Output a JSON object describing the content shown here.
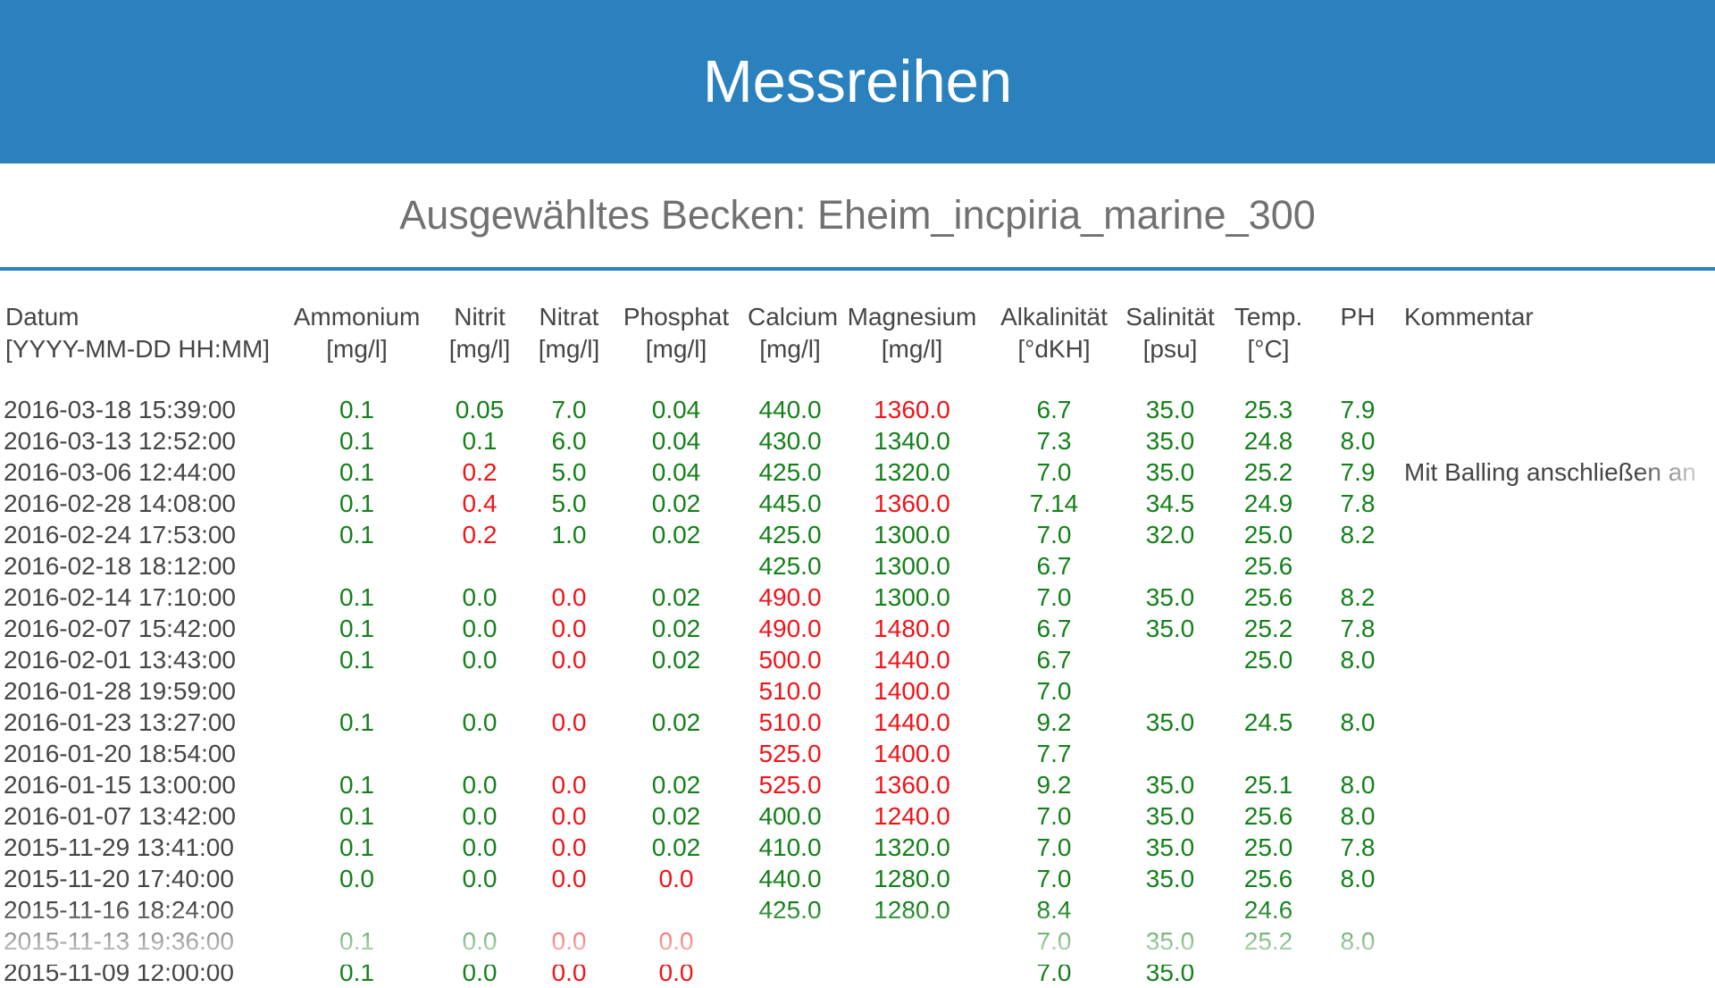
{
  "header": {
    "title": "Messreihen"
  },
  "subheader": {
    "selected_tank_label": "Ausgewähltes Becken: Eheim_incpiria_marine_300"
  },
  "colors": {
    "banner_blue": "#2a81be",
    "value_ok_green": "#14801a",
    "value_alert_red": "#f01419",
    "text_dark": "#454545",
    "subtitle_gray": "#717171"
  },
  "table": {
    "columns": [
      {
        "key": "datum",
        "label": "Datum",
        "unit": "[YYYY-MM-DD HH:MM]"
      },
      {
        "key": "ammonium",
        "label": "Ammonium",
        "unit": "[mg/l]"
      },
      {
        "key": "nitrit",
        "label": "Nitrit",
        "unit": "[mg/l]"
      },
      {
        "key": "nitrat",
        "label": "Nitrat",
        "unit": "[mg/l]"
      },
      {
        "key": "phosphat",
        "label": "Phosphat",
        "unit": "[mg/l]"
      },
      {
        "key": "calcium",
        "label": "Calcium",
        "unit": "[mg/l]"
      },
      {
        "key": "magnesium",
        "label": "Magnesium",
        "unit": "[mg/l]"
      },
      {
        "key": "alkalinitaet",
        "label": "Alkalinität",
        "unit": "[°dKH]"
      },
      {
        "key": "salinitaet",
        "label": "Salinität",
        "unit": "[psu]"
      },
      {
        "key": "temp",
        "label": "Temp.",
        "unit": "[°C]"
      },
      {
        "key": "ph",
        "label": "PH",
        "unit": ""
      },
      {
        "key": "kommentar",
        "label": "Kommentar",
        "unit": ""
      }
    ],
    "rows": [
      {
        "date": "2016-03-18 15:39:00",
        "values": [
          [
            "0.1",
            "g"
          ],
          [
            "0.05",
            "g"
          ],
          [
            "7.0",
            "g"
          ],
          [
            "0.04",
            "g"
          ],
          [
            "440.0",
            "g"
          ],
          [
            "1360.0",
            "r"
          ],
          [
            "6.7",
            "g"
          ],
          [
            "35.0",
            "g"
          ],
          [
            "25.3",
            "g"
          ],
          [
            "7.9",
            "g"
          ]
        ],
        "comment": ""
      },
      {
        "date": "2016-03-13 12:52:00",
        "values": [
          [
            "0.1",
            "g"
          ],
          [
            "0.1",
            "g"
          ],
          [
            "6.0",
            "g"
          ],
          [
            "0.04",
            "g"
          ],
          [
            "430.0",
            "g"
          ],
          [
            "1340.0",
            "g"
          ],
          [
            "7.3",
            "g"
          ],
          [
            "35.0",
            "g"
          ],
          [
            "24.8",
            "g"
          ],
          [
            "8.0",
            "g"
          ]
        ],
        "comment": ""
      },
      {
        "date": "2016-03-06 12:44:00",
        "values": [
          [
            "0.1",
            "g"
          ],
          [
            "0.2",
            "r"
          ],
          [
            "5.0",
            "g"
          ],
          [
            "0.04",
            "g"
          ],
          [
            "425.0",
            "g"
          ],
          [
            "1320.0",
            "g"
          ],
          [
            "7.0",
            "g"
          ],
          [
            "35.0",
            "g"
          ],
          [
            "25.2",
            "g"
          ],
          [
            "7.9",
            "g"
          ]
        ],
        "comment": "Mit Balling anschließen an"
      },
      {
        "date": "2016-02-28 14:08:00",
        "values": [
          [
            "0.1",
            "g"
          ],
          [
            "0.4",
            "r"
          ],
          [
            "5.0",
            "g"
          ],
          [
            "0.02",
            "g"
          ],
          [
            "445.0",
            "g"
          ],
          [
            "1360.0",
            "r"
          ],
          [
            "7.14",
            "g"
          ],
          [
            "34.5",
            "g"
          ],
          [
            "24.9",
            "g"
          ],
          [
            "7.8",
            "g"
          ]
        ],
        "comment": ""
      },
      {
        "date": "2016-02-24 17:53:00",
        "values": [
          [
            "0.1",
            "g"
          ],
          [
            "0.2",
            "r"
          ],
          [
            "1.0",
            "g"
          ],
          [
            "0.02",
            "g"
          ],
          [
            "425.0",
            "g"
          ],
          [
            "1300.0",
            "g"
          ],
          [
            "7.0",
            "g"
          ],
          [
            "32.0",
            "g"
          ],
          [
            "25.0",
            "g"
          ],
          [
            "8.2",
            "g"
          ]
        ],
        "comment": ""
      },
      {
        "date": "2016-02-18 18:12:00",
        "values": [
          null,
          null,
          null,
          null,
          [
            "425.0",
            "g"
          ],
          [
            "1300.0",
            "g"
          ],
          [
            "6.7",
            "g"
          ],
          null,
          [
            "25.6",
            "g"
          ],
          null
        ],
        "comment": ""
      },
      {
        "date": "2016-02-14 17:10:00",
        "values": [
          [
            "0.1",
            "g"
          ],
          [
            "0.0",
            "g"
          ],
          [
            "0.0",
            "r"
          ],
          [
            "0.02",
            "g"
          ],
          [
            "490.0",
            "r"
          ],
          [
            "1300.0",
            "g"
          ],
          [
            "7.0",
            "g"
          ],
          [
            "35.0",
            "g"
          ],
          [
            "25.6",
            "g"
          ],
          [
            "8.2",
            "g"
          ]
        ],
        "comment": ""
      },
      {
        "date": "2016-02-07 15:42:00",
        "values": [
          [
            "0.1",
            "g"
          ],
          [
            "0.0",
            "g"
          ],
          [
            "0.0",
            "r"
          ],
          [
            "0.02",
            "g"
          ],
          [
            "490.0",
            "r"
          ],
          [
            "1480.0",
            "r"
          ],
          [
            "6.7",
            "g"
          ],
          [
            "35.0",
            "g"
          ],
          [
            "25.2",
            "g"
          ],
          [
            "7.8",
            "g"
          ]
        ],
        "comment": ""
      },
      {
        "date": "2016-02-01 13:43:00",
        "values": [
          [
            "0.1",
            "g"
          ],
          [
            "0.0",
            "g"
          ],
          [
            "0.0",
            "r"
          ],
          [
            "0.02",
            "g"
          ],
          [
            "500.0",
            "r"
          ],
          [
            "1440.0",
            "r"
          ],
          [
            "6.7",
            "g"
          ],
          null,
          [
            "25.0",
            "g"
          ],
          [
            "8.0",
            "g"
          ]
        ],
        "comment": ""
      },
      {
        "date": "2016-01-28 19:59:00",
        "values": [
          null,
          null,
          null,
          null,
          [
            "510.0",
            "r"
          ],
          [
            "1400.0",
            "r"
          ],
          [
            "7.0",
            "g"
          ],
          null,
          null,
          null
        ],
        "comment": ""
      },
      {
        "date": "2016-01-23 13:27:00",
        "values": [
          [
            "0.1",
            "g"
          ],
          [
            "0.0",
            "g"
          ],
          [
            "0.0",
            "r"
          ],
          [
            "0.02",
            "g"
          ],
          [
            "510.0",
            "r"
          ],
          [
            "1440.0",
            "r"
          ],
          [
            "9.2",
            "g"
          ],
          [
            "35.0",
            "g"
          ],
          [
            "24.5",
            "g"
          ],
          [
            "8.0",
            "g"
          ]
        ],
        "comment": ""
      },
      {
        "date": "2016-01-20 18:54:00",
        "values": [
          null,
          null,
          null,
          null,
          [
            "525.0",
            "r"
          ],
          [
            "1400.0",
            "r"
          ],
          [
            "7.7",
            "g"
          ],
          null,
          null,
          null
        ],
        "comment": ""
      },
      {
        "date": "2016-01-15 13:00:00",
        "values": [
          [
            "0.1",
            "g"
          ],
          [
            "0.0",
            "g"
          ],
          [
            "0.0",
            "r"
          ],
          [
            "0.02",
            "g"
          ],
          [
            "525.0",
            "r"
          ],
          [
            "1360.0",
            "r"
          ],
          [
            "9.2",
            "g"
          ],
          [
            "35.0",
            "g"
          ],
          [
            "25.1",
            "g"
          ],
          [
            "8.0",
            "g"
          ]
        ],
        "comment": ""
      },
      {
        "date": "2016-01-07 13:42:00",
        "values": [
          [
            "0.1",
            "g"
          ],
          [
            "0.0",
            "g"
          ],
          [
            "0.0",
            "r"
          ],
          [
            "0.02",
            "g"
          ],
          [
            "400.0",
            "g"
          ],
          [
            "1240.0",
            "r"
          ],
          [
            "7.0",
            "g"
          ],
          [
            "35.0",
            "g"
          ],
          [
            "25.6",
            "g"
          ],
          [
            "8.0",
            "g"
          ]
        ],
        "comment": ""
      },
      {
        "date": "2015-11-29 13:41:00",
        "values": [
          [
            "0.1",
            "g"
          ],
          [
            "0.0",
            "g"
          ],
          [
            "0.0",
            "r"
          ],
          [
            "0.02",
            "g"
          ],
          [
            "410.0",
            "g"
          ],
          [
            "1320.0",
            "g"
          ],
          [
            "7.0",
            "g"
          ],
          [
            "35.0",
            "g"
          ],
          [
            "25.0",
            "g"
          ],
          [
            "7.8",
            "g"
          ]
        ],
        "comment": ""
      },
      {
        "date": "2015-11-20 17:40:00",
        "values": [
          [
            "0.0",
            "g"
          ],
          [
            "0.0",
            "g"
          ],
          [
            "0.0",
            "r"
          ],
          [
            "0.0",
            "r"
          ],
          [
            "440.0",
            "g"
          ],
          [
            "1280.0",
            "g"
          ],
          [
            "7.0",
            "g"
          ],
          [
            "35.0",
            "g"
          ],
          [
            "25.6",
            "g"
          ],
          [
            "8.0",
            "g"
          ]
        ],
        "comment": ""
      },
      {
        "date": "2015-11-16 18:24:00",
        "values": [
          null,
          null,
          null,
          null,
          [
            "425.0",
            "g"
          ],
          [
            "1280.0",
            "g"
          ],
          [
            "8.4",
            "g"
          ],
          null,
          [
            "24.6",
            "g"
          ],
          null
        ],
        "comment": ""
      },
      {
        "date": "2015-11-13 19:36:00",
        "values": [
          [
            "0.1",
            "g"
          ],
          [
            "0.0",
            "g"
          ],
          [
            "0.0",
            "r"
          ],
          [
            "0.0",
            "r"
          ],
          null,
          null,
          [
            "7.0",
            "g"
          ],
          [
            "35.0",
            "g"
          ],
          [
            "25.2",
            "g"
          ],
          [
            "8.0",
            "g"
          ]
        ],
        "comment": ""
      },
      {
        "date": "2015-11-09 12:00:00",
        "values": [
          [
            "0.1",
            "g"
          ],
          [
            "0.0",
            "g"
          ],
          [
            "0.0",
            "r"
          ],
          [
            "0.0",
            "r"
          ],
          null,
          null,
          [
            "7.0",
            "g"
          ],
          [
            "35.0",
            "g"
          ],
          null,
          null
        ],
        "comment": ""
      }
    ]
  }
}
